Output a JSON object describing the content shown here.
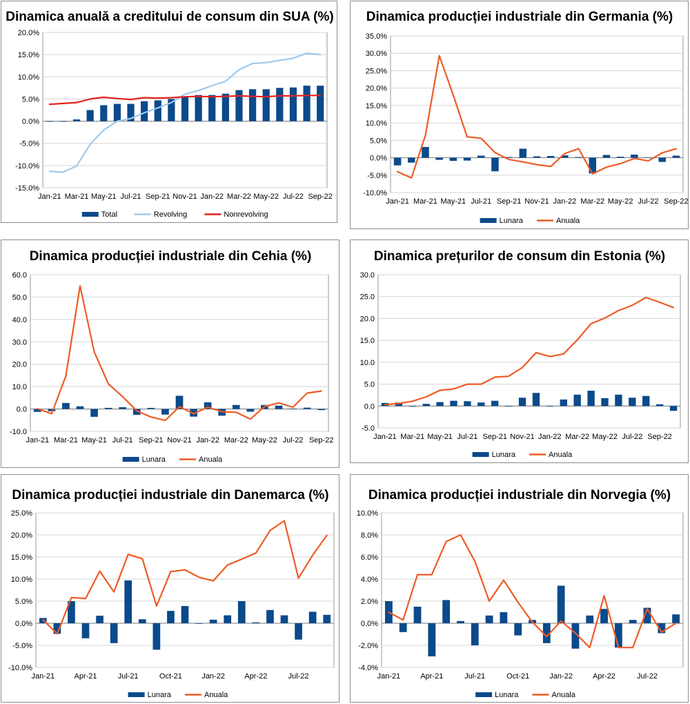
{
  "colors": {
    "bar": "#0b4a8b",
    "line_orange": "#ee5a24",
    "line_red": "#e3231b",
    "line_light_blue": "#9fc8ec",
    "grid": "#d4d4d4"
  },
  "chart_data": [
    {
      "id": "usa",
      "type": "bar+line",
      "title": "Dinamica anuală a creditului de consum din SUA (%)",
      "ylim": [
        -15,
        20
      ],
      "ystep": 5,
      "tick_suffix": "%",
      "tick_decimals": 1,
      "tick_labels": [
        "Jan-21",
        "Mar-21",
        "May-21",
        "Jul-21",
        "Sep-21",
        "Nov-21",
        "Jan-22",
        "Mar-22",
        "May-22",
        "Jul-22",
        "Sep-22"
      ],
      "tick_every": 2,
      "bar_series": {
        "name": "Total",
        "values": [
          -0.1,
          -0.1,
          0.4,
          2.5,
          3.6,
          3.9,
          3.9,
          4.5,
          4.7,
          5.0,
          5.6,
          5.9,
          5.9,
          6.2,
          7.0,
          7.2,
          7.2,
          7.5,
          7.6,
          8.0,
          8.0
        ]
      },
      "line_series": [
        {
          "name": "Revolving",
          "color": "#9fc8ec",
          "values": [
            -11.3,
            -11.5,
            -10.1,
            -5.2,
            -2.0,
            0.0,
            0.6,
            1.9,
            3.0,
            4.2,
            6.1,
            6.9,
            8.0,
            9.0,
            11.6,
            13.0,
            13.2,
            13.7,
            14.2,
            15.3,
            15.0
          ]
        },
        {
          "name": "Nonrevolving",
          "color": "#e3231b",
          "values": [
            3.8,
            4.0,
            4.2,
            5.0,
            5.4,
            5.1,
            4.9,
            5.3,
            5.2,
            5.3,
            5.5,
            5.6,
            5.5,
            5.6,
            5.7,
            5.6,
            5.5,
            5.7,
            5.7,
            5.8,
            5.8
          ]
        }
      ]
    },
    {
      "id": "germany",
      "type": "bar+line",
      "title": "Dinamica producției industriale din Germania (%)",
      "ylim": [
        -10,
        35
      ],
      "ystep": 5,
      "tick_suffix": "%",
      "tick_decimals": 1,
      "tick_labels": [
        "Jan-21",
        "Mar-21",
        "May-21",
        "Jul-21",
        "Sep-21",
        "Nov-21",
        "Jan-22",
        "Mar-22",
        "May-22",
        "Jul-22",
        "Sep-22"
      ],
      "tick_every": 2,
      "bar_series": {
        "name": "Lunara",
        "values": [
          -2.2,
          -1.4,
          3.1,
          -0.6,
          -0.9,
          -0.8,
          0.6,
          -3.9,
          0.2,
          2.6,
          0.4,
          0.5,
          0.7,
          0.2,
          -4.5,
          0.8,
          0.3,
          0.9,
          0.1,
          -1.2,
          0.6
        ]
      },
      "line_series": [
        {
          "name": "Anuala",
          "color": "#ee5a24",
          "values": [
            -4.0,
            -5.8,
            6.4,
            29.3,
            18.0,
            6.0,
            5.6,
            1.5,
            -0.5,
            -1.2,
            -2.0,
            -2.5,
            1.2,
            2.6,
            -4.6,
            -2.7,
            -1.7,
            -0.2,
            -0.9,
            1.4,
            2.6
          ]
        }
      ]
    },
    {
      "id": "czech",
      "type": "bar+line",
      "title": "Dinamica producției industriale din Cehia (%)",
      "ylim": [
        -10,
        60
      ],
      "ystep": 10,
      "tick_suffix": "",
      "tick_decimals": 1,
      "tick_labels": [
        "Jan-21",
        "Mar-21",
        "May-21",
        "Jul-21",
        "Sep-21",
        "Nov-21",
        "Jan-22",
        "Mar-22",
        "May-22",
        "Jul-22",
        "Sep-22"
      ],
      "tick_every": 2,
      "bar_series": {
        "name": "Lunara",
        "values": [
          -1.3,
          -1.0,
          2.7,
          1.2,
          -3.5,
          0.5,
          0.8,
          -2.6,
          0.5,
          -2.5,
          5.9,
          -3.4,
          3.0,
          -3.0,
          1.8,
          -1.2,
          1.8,
          1.5,
          0.2,
          0.6,
          -0.5
        ]
      },
      "line_series": [
        {
          "name": "Anuala",
          "color": "#ee5a24",
          "values": [
            0.1,
            -2.1,
            14.7,
            55.0,
            25.5,
            11.2,
            5.5,
            -0.8,
            -3.6,
            -5.1,
            1.0,
            -2.1,
            0.8,
            -1.2,
            -1.5,
            -4.5,
            1.1,
            2.7,
            0.8,
            7.1,
            8.0
          ]
        }
      ]
    },
    {
      "id": "estonia",
      "type": "bar+line",
      "title": "Dinamica prețurilor de consum din Estonia (%)",
      "ylim": [
        -5,
        30
      ],
      "ystep": 5,
      "tick_suffix": "",
      "tick_decimals": 1,
      "tick_labels": [
        "Jan-21",
        "Mar-21",
        "May-21",
        "Jul-21",
        "Sep-21",
        "Nov-21",
        "Jan-22",
        "Mar-22",
        "May-22",
        "Jul-22",
        "Sep-22"
      ],
      "tick_every": 2,
      "bar_series": {
        "name": "Lunara",
        "values": [
          0.7,
          0.8,
          -0.1,
          0.5,
          0.9,
          1.2,
          1.1,
          0.8,
          1.2,
          -0.1,
          1.9,
          3.0,
          -0.1,
          1.5,
          2.6,
          3.5,
          1.8,
          2.6,
          1.9,
          2.3,
          0.4,
          -1.1
        ]
      },
      "line_series": [
        {
          "name": "Anuala",
          "color": "#ee5a24",
          "values": [
            0.3,
            0.6,
            1.1,
            2.1,
            3.6,
            3.9,
            5.0,
            5.0,
            6.6,
            6.8,
            8.8,
            12.2,
            11.3,
            11.9,
            15.1,
            18.8,
            20.1,
            21.8,
            23.0,
            24.8,
            23.7,
            22.5
          ]
        }
      ]
    },
    {
      "id": "denmark",
      "type": "bar+line",
      "title": "Dinamica producției industriale din Danemarca (%)",
      "ylim": [
        -10,
        25
      ],
      "ystep": 5,
      "tick_suffix": "%",
      "tick_decimals": 1,
      "tick_labels": [
        "Jan-21",
        "Apr-21",
        "Jul-21",
        "Oct-21",
        "Jan-22",
        "Apr-22",
        "Jul-22"
      ],
      "tick_every": 3,
      "bar_series": {
        "name": "Lunara",
        "values": [
          1.2,
          -2.4,
          5.0,
          -3.4,
          1.7,
          -4.5,
          9.7,
          0.9,
          -6.0,
          2.8,
          3.9,
          0.0,
          0.8,
          1.8,
          5.0,
          0.2,
          3.0,
          1.8,
          -3.7,
          2.6,
          1.9
        ]
      },
      "line_series": [
        {
          "name": "Anuala",
          "color": "#ee5a24",
          "values": [
            0.8,
            -2.4,
            5.8,
            5.6,
            11.8,
            7.1,
            15.6,
            14.6,
            3.9,
            11.7,
            12.1,
            10.4,
            9.6,
            13.2,
            14.5,
            15.9,
            21.0,
            23.2,
            10.2,
            15.4,
            19.9
          ]
        }
      ]
    },
    {
      "id": "norway",
      "type": "bar+line",
      "title": "Dinamica producției industriale din Norvegia (%)",
      "ylim": [
        -4,
        10
      ],
      "ystep": 2,
      "tick_suffix": "%",
      "tick_decimals": 1,
      "tick_labels": [
        "Jan-21",
        "Apr-21",
        "Jul-21",
        "Oct-21",
        "Jan-22",
        "Apr-22",
        "Jul-22"
      ],
      "tick_every": 3,
      "bar_series": {
        "name": "Lunara",
        "values": [
          2.0,
          -0.8,
          1.5,
          -3.0,
          2.1,
          0.2,
          -2.0,
          0.7,
          1.0,
          -1.1,
          0.3,
          -1.8,
          3.4,
          -2.3,
          0.7,
          1.3,
          -2.2,
          0.3,
          1.4,
          -0.9,
          0.8
        ]
      },
      "line_series": [
        {
          "name": "Anuala",
          "color": "#ee5a24",
          "values": [
            1.0,
            0.3,
            4.4,
            4.4,
            7.4,
            8.0,
            5.6,
            2.0,
            3.9,
            1.9,
            0.1,
            -1.2,
            0.2,
            -0.9,
            -2.2,
            2.5,
            -2.2,
            -2.2,
            1.3,
            -0.8,
            0.0
          ]
        }
      ]
    }
  ]
}
